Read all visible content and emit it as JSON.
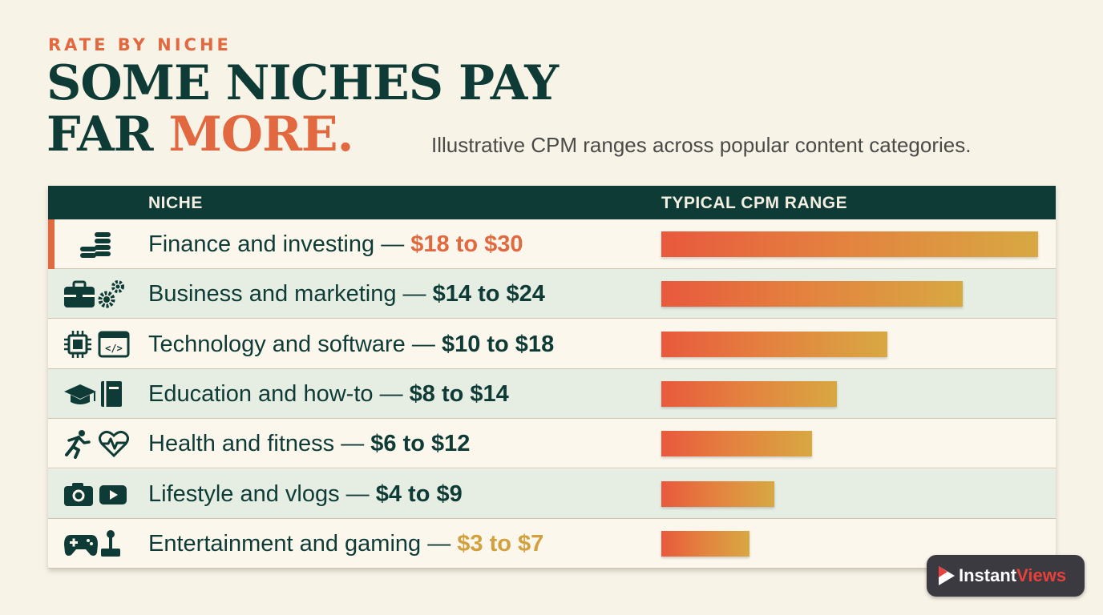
{
  "eyebrow": "RATE BY NICHE",
  "headline": {
    "line1": "SOME NICHES PAY",
    "line2_plain": "FAR ",
    "line2_accent": "MORE."
  },
  "subtitle": "Illustrative CPM ranges across popular content categories.",
  "table": {
    "col_niche": "NICHE",
    "col_range": "TYPICAL CPM RANGE"
  },
  "colors": {
    "primary": "#0f3b37",
    "accent": "#e2683f",
    "gold": "#d2a03c",
    "background": "#f8f3e7",
    "bar_gradient": [
      "#e8593d",
      "#e4803f",
      "#d8a842"
    ]
  },
  "rows": [
    {
      "niche": "Finance and investing",
      "sep": " — ",
      "range": "$18 to $30",
      "range_color": "#e2683f",
      "icons": [
        "coin-stack-icon"
      ]
    },
    {
      "niche": "Business and marketing",
      "sep": " — ",
      "range": "$14 to $24",
      "range_color": "#0f3b37",
      "icons": [
        "briefcase-icon",
        "gears-icon"
      ]
    },
    {
      "niche": "Technology and software",
      "sep": " — ",
      "range": "$10 to $18",
      "range_color": "#0f3b37",
      "icons": [
        "chip-icon",
        "code-window-icon"
      ]
    },
    {
      "niche": "Education and how-to",
      "sep": " — ",
      "range": "$8 to $14",
      "range_color": "#0f3b37",
      "icons": [
        "graduation-cap-icon",
        "book-icon"
      ]
    },
    {
      "niche": "Health and fitness",
      "sep": " — ",
      "range": "$6 to $12",
      "range_color": "#0f3b37",
      "icons": [
        "runner-icon",
        "heartbeat-icon"
      ]
    },
    {
      "niche": "Lifestyle and vlogs",
      "sep": " — ",
      "range": "$4 to $9",
      "range_color": "#0f3b37",
      "icons": [
        "camera-icon",
        "video-play-icon"
      ]
    },
    {
      "niche": "Entertainment and gaming",
      "sep": " — ",
      "range": "$3 to $7",
      "range_color": "#d2a03c",
      "icons": [
        "gamepad-icon",
        "joystick-icon"
      ]
    }
  ],
  "chart_data": {
    "type": "bar",
    "orientation": "horizontal",
    "categories": [
      "Finance and investing",
      "Business and marketing",
      "Technology and software",
      "Education and how-to",
      "Health and fitness",
      "Lifestyle and vlogs",
      "Entertainment and gaming"
    ],
    "series": [
      {
        "name": "TYPICAL CPM RANGE",
        "low": [
          18,
          14,
          10,
          8,
          6,
          4,
          3
        ],
        "high": [
          30,
          24,
          18,
          14,
          12,
          9,
          7
        ]
      }
    ],
    "values": [
      30,
      24,
      18,
      14,
      12,
      9,
      7
    ],
    "unit": "USD CPM",
    "xlim": [
      0,
      30
    ],
    "grid": false,
    "legend": "none"
  },
  "logo": {
    "name_plain": "Instant",
    "name_accent": "Views"
  }
}
